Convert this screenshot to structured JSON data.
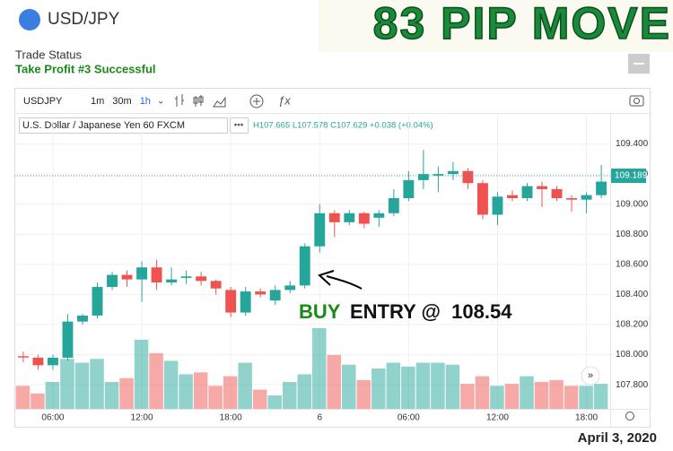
{
  "header": {
    "symbol": "USD/JPY",
    "status_label": "Trade Status",
    "status": "Take Profit #3 Successful",
    "headline": "83 PIP MOVE"
  },
  "toolbar": {
    "symbol": "USDJPY",
    "intervals": [
      "1m",
      "30m",
      "1h"
    ]
  },
  "legend_info": {
    "instrument": "U.S. Dollar / Japanese Yen  60  FXCM",
    "ohlc": "H107.665 L107.578 C107.629 +0.038 (+0.04%)"
  },
  "annotation": {
    "buy": "BUY",
    "entry": "ENTRY @  108.54"
  },
  "footer": {
    "date": "April 3, 2020"
  },
  "chart_data": {
    "type": "candlestick",
    "x": [
      0,
      1,
      2,
      3,
      4,
      5,
      6,
      7,
      8,
      9,
      10,
      11,
      12,
      13,
      14,
      15,
      16,
      17,
      18,
      19,
      20,
      21,
      22,
      23,
      24,
      25,
      26,
      27,
      28,
      29,
      30,
      31,
      32,
      33,
      34,
      35,
      36,
      37,
      38,
      39
    ],
    "open": [
      107.99,
      107.98,
      107.93,
      107.98,
      108.22,
      108.26,
      108.45,
      108.53,
      108.5,
      108.58,
      108.48,
      108.51,
      108.52,
      108.49,
      108.43,
      108.28,
      108.42,
      108.36,
      108.43,
      108.46,
      108.72,
      108.94,
      108.88,
      108.94,
      108.91,
      108.94,
      109.04,
      109.16,
      109.19,
      109.2,
      109.22,
      109.14,
      108.93,
      109.06,
      109.04,
      109.12,
      109.1,
      109.04,
      109.03,
      109.06
    ],
    "high": [
      108.02,
      108.0,
      108.0,
      108.27,
      108.27,
      108.48,
      108.55,
      108.56,
      108.62,
      108.63,
      108.58,
      108.56,
      108.55,
      108.5,
      108.45,
      108.45,
      108.44,
      108.46,
      108.49,
      108.74,
      109.0,
      108.96,
      108.96,
      108.95,
      108.96,
      109.1,
      109.22,
      109.36,
      109.25,
      109.28,
      109.24,
      109.16,
      109.08,
      109.09,
      109.14,
      109.15,
      109.12,
      109.06,
      109.08,
      109.26
    ],
    "low": [
      107.95,
      107.9,
      107.9,
      107.96,
      108.2,
      108.24,
      108.43,
      108.45,
      108.35,
      108.43,
      108.46,
      108.47,
      108.46,
      108.4,
      108.25,
      108.26,
      108.38,
      108.33,
      108.41,
      108.44,
      108.68,
      108.78,
      108.86,
      108.84,
      108.85,
      108.92,
      109.02,
      109.1,
      109.08,
      109.16,
      109.1,
      108.9,
      108.86,
      109.02,
      109.02,
      108.98,
      109.02,
      108.95,
      108.94,
      109.04
    ],
    "close": [
      107.985,
      107.93,
      107.98,
      108.22,
      108.26,
      108.45,
      108.53,
      108.5,
      108.58,
      108.48,
      108.5,
      108.52,
      108.49,
      108.44,
      108.28,
      108.42,
      108.4,
      108.43,
      108.46,
      108.72,
      108.94,
      108.88,
      108.94,
      108.87,
      108.94,
      109.04,
      109.16,
      109.2,
      109.2,
      109.22,
      109.14,
      108.93,
      109.05,
      109.04,
      109.12,
      109.1,
      109.04,
      109.03,
      109.06,
      109.15
    ],
    "volume": [
      24,
      16,
      28,
      52,
      48,
      52,
      28,
      32,
      72,
      58,
      50,
      36,
      38,
      24,
      34,
      48,
      20,
      14,
      28,
      36,
      84,
      56,
      46,
      30,
      42,
      48,
      44,
      48,
      48,
      46,
      26,
      34,
      24,
      26,
      34,
      28,
      30,
      24,
      24,
      26
    ],
    "up_color": "#26a69a",
    "down_color": "#ef5350",
    "xlim": [
      -0.6,
      39.6
    ],
    "xticks": [
      {
        "value": 2,
        "label": "06:00"
      },
      {
        "value": 8,
        "label": "12:00"
      },
      {
        "value": 14,
        "label": "18:00"
      },
      {
        "value": 20,
        "label": "6"
      },
      {
        "value": 26,
        "label": "06:00"
      },
      {
        "value": 32,
        "label": "12:00"
      },
      {
        "value": 38,
        "label": "18:00"
      }
    ],
    "ylim": [
      107.64,
      109.6
    ],
    "yticks": [
      {
        "value": 107.8,
        "label": "107.800"
      },
      {
        "value": 108,
        "label": "108.000"
      },
      {
        "value": 108.2,
        "label": "108.200"
      },
      {
        "value": 108.4,
        "label": "108.400"
      },
      {
        "value": 108.6,
        "label": "108.600"
      },
      {
        "value": 108.8,
        "label": "108.800"
      },
      {
        "value": 109,
        "label": "109.000"
      },
      {
        "value": 109.2,
        "label": "109.200"
      },
      {
        "value": 109.4,
        "label": "109.400"
      }
    ],
    "last_price": 109.189,
    "grid": true
  }
}
